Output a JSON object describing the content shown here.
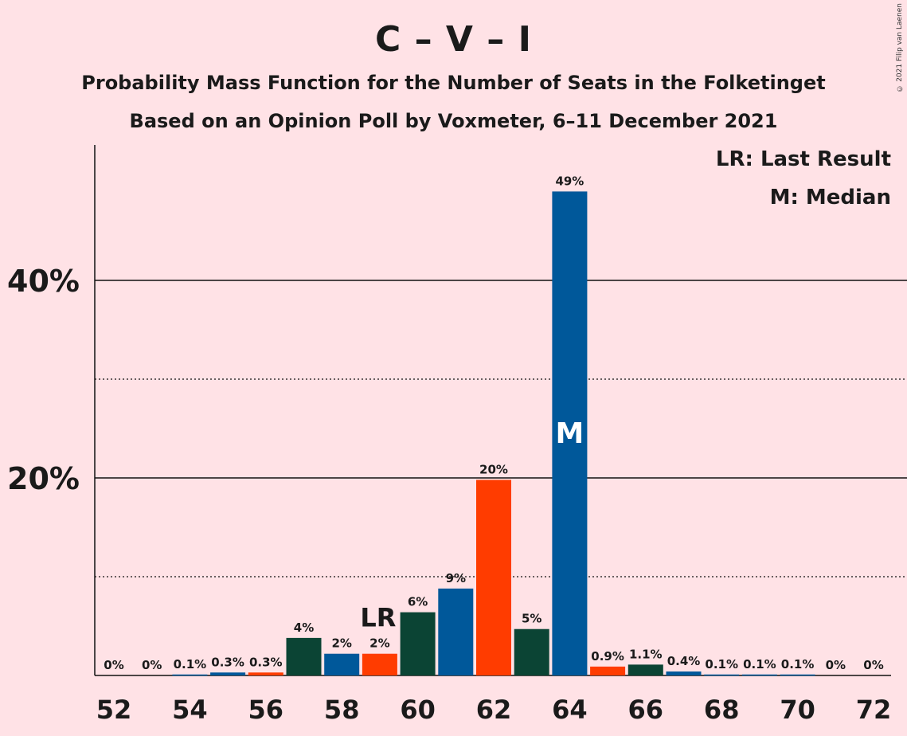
{
  "chart_data": {
    "type": "bar",
    "title": "C – V – I",
    "subtitle": "Probability Mass Function for the Number of Seats in the Folketinget",
    "subtitle2": "Based on an Opinion Poll by Voxmeter, 6–11 December 2021",
    "copyright": "© 2021 Filip van Laenen",
    "legend": {
      "last_result": "LR: Last Result",
      "median": "M: Median",
      "placement": "top-right"
    },
    "x": [
      52,
      53,
      54,
      55,
      56,
      57,
      58,
      59,
      60,
      61,
      62,
      63,
      64,
      65,
      66,
      67,
      68,
      69,
      70,
      71,
      72
    ],
    "values": [
      0,
      0,
      0.1,
      0.3,
      0.3,
      3.8,
      2.2,
      2.2,
      6.4,
      8.8,
      19.8,
      4.7,
      49,
      0.9,
      1.1,
      0.4,
      0.1,
      0.1,
      0.1,
      0,
      0
    ],
    "data_labels": [
      "0%",
      "0%",
      "0.1%",
      "0.3%",
      "0.3%",
      "4%",
      "2%",
      "2%",
      "6%",
      "9%",
      "20%",
      "5%",
      "49%",
      "0.9%",
      "1.1%",
      "0.4%",
      "0.1%",
      "0.1%",
      "0.1%",
      "0%",
      "0%"
    ],
    "x_tick_labels": [
      "52",
      "54",
      "56",
      "58",
      "60",
      "62",
      "64",
      "66",
      "68",
      "70",
      "72"
    ],
    "y_tick_labels": [
      "20%",
      "40%"
    ],
    "ylim": [
      0,
      53.5
    ],
    "grid": {
      "solid_at": [
        20,
        40
      ],
      "dotted_at": [
        10,
        30
      ]
    },
    "last_result": {
      "x": 59,
      "label": "LR"
    },
    "median": {
      "x": 64,
      "label": "M"
    },
    "colors": {
      "background": "#FFE2E6",
      "blue": "#00589A",
      "dark_green": "#0B4434",
      "red": "#FF3C00"
    }
  }
}
